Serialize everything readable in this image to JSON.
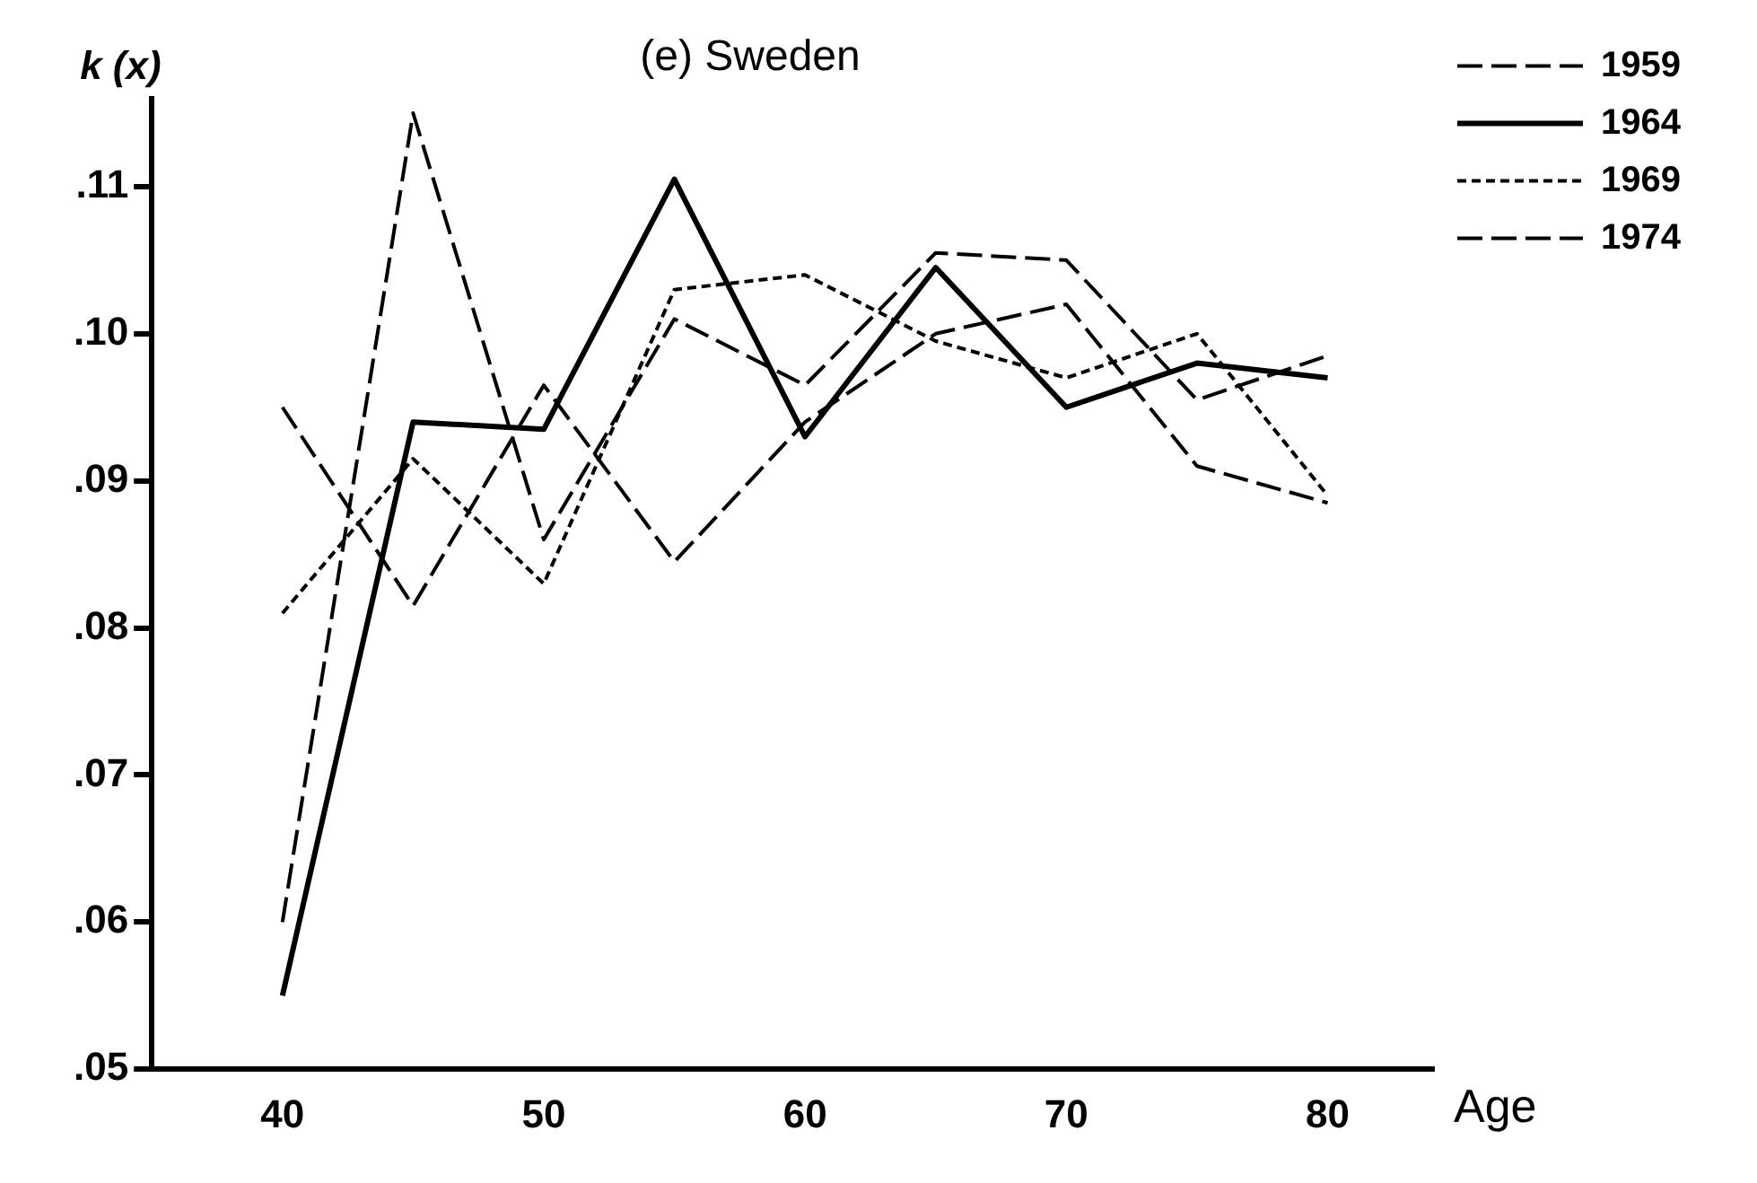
{
  "chart_data": {
    "type": "line",
    "title": "(e) Sweden",
    "xlabel": "Age",
    "ylabel": "k (x)",
    "x": [
      40,
      45,
      50,
      55,
      60,
      65,
      70,
      75,
      80
    ],
    "series": [
      {
        "name": "1959",
        "color": "#000000",
        "line_style": "dashed",
        "values": [
          0.06,
          0.115,
          0.086,
          0.101,
          0.0965,
          0.1055,
          0.105,
          0.0955,
          0.0985
        ]
      },
      {
        "name": "1964",
        "color": "#000000",
        "line_style": "solid",
        "values": [
          0.055,
          0.094,
          0.0935,
          0.1105,
          0.093,
          0.1045,
          0.095,
          0.098,
          0.097
        ]
      },
      {
        "name": "1969",
        "color": "#000000",
        "line_style": "dotted",
        "values": [
          0.081,
          0.0915,
          0.083,
          0.103,
          0.104,
          0.0995,
          0.097,
          0.1,
          0.089
        ]
      },
      {
        "name": "1974",
        "color": "#000000",
        "line_style": "dashed",
        "values": [
          0.095,
          0.0815,
          0.0965,
          0.0845,
          0.094,
          0.1,
          0.102,
          0.091,
          0.0885
        ]
      }
    ],
    "xlim": [
      35,
      84
    ],
    "xticks": [
      40,
      50,
      60,
      70,
      80
    ],
    "ylim": [
      0.05,
      0.116
    ],
    "yticks": [
      {
        "value": 0.05,
        "label": ".05"
      },
      {
        "value": 0.06,
        "label": ".06"
      },
      {
        "value": 0.07,
        "label": ".07"
      },
      {
        "value": 0.08,
        "label": ".08"
      },
      {
        "value": 0.09,
        "label": ".09"
      },
      {
        "value": 0.1,
        "label": ".10"
      },
      {
        "value": 0.11,
        "label": ".11"
      }
    ],
    "grid": false,
    "legend": "top right",
    "marker": "none"
  }
}
